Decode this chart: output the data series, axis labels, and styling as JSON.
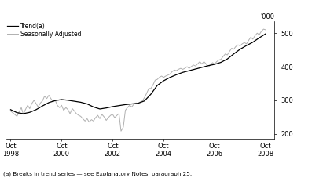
{
  "footnote": "(a) Breaks in trend series — see Explanatory Notes, paragraph 25.",
  "legend": [
    "Trend(a)",
    "Seasonally Adjusted"
  ],
  "trend_color": "#000000",
  "seasonal_color": "#b0b0b0",
  "background_color": "#ffffff",
  "ylim": [
    185,
    535
  ],
  "yticks": [
    200,
    300,
    400,
    500
  ],
  "ylabel": "'000",
  "xlim": [
    1998.58,
    2009.1
  ],
  "xtick_positions": [
    1998.75,
    2000.75,
    2002.75,
    2004.75,
    2006.75,
    2008.75
  ],
  "xtick_labels": [
    "Oct\n1998",
    "Oct\n2000",
    "Oct\n2002",
    "Oct\n2004",
    "Oct\n2006",
    "Oct\n2008"
  ],
  "trend_x": [
    1998.75,
    1999.0,
    1999.25,
    1999.5,
    1999.75,
    2000.0,
    2000.25,
    2000.5,
    2000.75,
    2001.0,
    2001.25,
    2001.5,
    2001.75,
    2002.0,
    2002.25,
    2002.5,
    2002.75,
    2003.0,
    2003.25,
    2003.5,
    2003.75,
    2004.0,
    2004.25,
    2004.5,
    2004.75,
    2005.0,
    2005.25,
    2005.5,
    2005.75,
    2006.0,
    2006.25,
    2006.5,
    2006.75,
    2007.0,
    2007.25,
    2007.5,
    2007.75,
    2008.0,
    2008.25,
    2008.5,
    2008.75
  ],
  "trend_y": [
    272,
    263,
    260,
    264,
    272,
    283,
    293,
    299,
    302,
    300,
    297,
    294,
    289,
    280,
    274,
    277,
    281,
    284,
    287,
    289,
    291,
    298,
    318,
    344,
    358,
    368,
    376,
    383,
    388,
    393,
    398,
    403,
    407,
    413,
    423,
    438,
    452,
    463,
    473,
    486,
    498
  ],
  "seasonal_x": [
    1998.75,
    1999.0,
    1999.08,
    1999.17,
    1999.25,
    1999.33,
    1999.42,
    1999.5,
    1999.58,
    1999.67,
    1999.75,
    1999.83,
    1999.92,
    2000.0,
    2000.08,
    2000.17,
    2000.25,
    2000.33,
    2000.42,
    2000.5,
    2000.58,
    2000.67,
    2000.75,
    2000.83,
    2000.92,
    2001.0,
    2001.08,
    2001.17,
    2001.25,
    2001.33,
    2001.42,
    2001.5,
    2001.58,
    2001.67,
    2001.75,
    2001.83,
    2001.92,
    2002.0,
    2002.08,
    2002.17,
    2002.25,
    2002.33,
    2002.42,
    2002.5,
    2002.58,
    2002.67,
    2002.75,
    2002.83,
    2002.92,
    2003.0,
    2003.08,
    2003.17,
    2003.25,
    2003.33,
    2003.42,
    2003.5,
    2003.58,
    2003.67,
    2003.75,
    2003.83,
    2003.92,
    2004.0,
    2004.08,
    2004.17,
    2004.25,
    2004.33,
    2004.42,
    2004.5,
    2004.58,
    2004.67,
    2004.75,
    2004.83,
    2004.92,
    2005.0,
    2005.08,
    2005.17,
    2005.25,
    2005.33,
    2005.42,
    2005.5,
    2005.58,
    2005.67,
    2005.75,
    2005.83,
    2005.92,
    2006.0,
    2006.08,
    2006.17,
    2006.25,
    2006.33,
    2006.42,
    2006.5,
    2006.58,
    2006.67,
    2006.75,
    2006.83,
    2006.92,
    2007.0,
    2007.08,
    2007.17,
    2007.25,
    2007.33,
    2007.42,
    2007.5,
    2007.58,
    2007.67,
    2007.75,
    2007.83,
    2007.92,
    2008.0,
    2008.08,
    2008.17,
    2008.25,
    2008.33,
    2008.42,
    2008.5,
    2008.58,
    2008.67,
    2008.75
  ],
  "seasonal_y": [
    268,
    252,
    265,
    278,
    258,
    272,
    285,
    275,
    290,
    300,
    290,
    280,
    292,
    298,
    312,
    305,
    315,
    305,
    295,
    300,
    285,
    278,
    285,
    270,
    278,
    272,
    260,
    275,
    268,
    260,
    255,
    252,
    245,
    238,
    245,
    235,
    242,
    238,
    248,
    255,
    245,
    258,
    250,
    240,
    248,
    255,
    258,
    248,
    255,
    260,
    208,
    220,
    270,
    278,
    285,
    280,
    288,
    292,
    290,
    295,
    298,
    308,
    320,
    335,
    335,
    345,
    360,
    362,
    368,
    372,
    368,
    372,
    375,
    378,
    385,
    390,
    388,
    392,
    395,
    392,
    395,
    400,
    395,
    400,
    405,
    402,
    408,
    415,
    408,
    415,
    408,
    398,
    405,
    412,
    408,
    415,
    420,
    422,
    430,
    438,
    435,
    445,
    455,
    452,
    460,
    465,
    462,
    468,
    472,
    468,
    478,
    488,
    482,
    492,
    500,
    495,
    505,
    512,
    510
  ]
}
